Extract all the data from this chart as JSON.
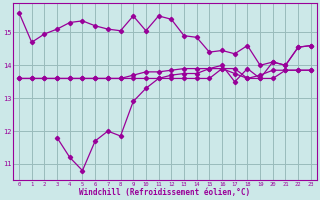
{
  "xlabel": "Windchill (Refroidissement éolien,°C)",
  "bg_color": "#cce8e8",
  "line_color": "#990099",
  "grid_color": "#99bbbb",
  "xlim": [
    -0.5,
    23.5
  ],
  "ylim": [
    10.5,
    15.9
  ],
  "yticks": [
    11,
    12,
    13,
    14,
    15
  ],
  "xticks": [
    0,
    1,
    2,
    3,
    4,
    5,
    6,
    7,
    8,
    9,
    10,
    11,
    12,
    13,
    14,
    15,
    16,
    17,
    18,
    19,
    20,
    21,
    22,
    23
  ],
  "series1_x": [
    0,
    1,
    2,
    3,
    4,
    5,
    6,
    7,
    8,
    9,
    10,
    11,
    12,
    13,
    14,
    15,
    16,
    17,
    18,
    19,
    20,
    21,
    22,
    23
  ],
  "series1_y": [
    15.6,
    14.7,
    14.95,
    15.1,
    15.3,
    15.35,
    15.2,
    15.1,
    15.05,
    15.5,
    15.05,
    15.5,
    15.4,
    14.9,
    14.85,
    14.4,
    14.45,
    14.35,
    14.6,
    14.0,
    14.1,
    14.0,
    14.55,
    14.6
  ],
  "series2_x": [
    0,
    1,
    2,
    3,
    4,
    5,
    6,
    7,
    8,
    9,
    10,
    11,
    12,
    13,
    14,
    15,
    16,
    17,
    18,
    19,
    20,
    21,
    22,
    23
  ],
  "series2_y": [
    13.6,
    13.6,
    13.6,
    13.6,
    13.6,
    13.6,
    13.6,
    13.6,
    13.6,
    13.6,
    13.6,
    13.6,
    13.6,
    13.6,
    13.6,
    13.6,
    13.9,
    13.9,
    13.6,
    13.6,
    13.6,
    13.85,
    13.85,
    13.85
  ],
  "series3_x": [
    0,
    1,
    2,
    3,
    4,
    5,
    6,
    7,
    8,
    9,
    10,
    11,
    12,
    13,
    14,
    15,
    16,
    17,
    18,
    19,
    20,
    21,
    22,
    23
  ],
  "series3_y": [
    13.6,
    13.6,
    13.6,
    13.6,
    13.6,
    13.6,
    13.6,
    13.6,
    13.6,
    13.7,
    13.8,
    13.8,
    13.85,
    13.9,
    13.9,
    13.9,
    13.9,
    13.75,
    13.6,
    13.7,
    13.85,
    13.85,
    13.85,
    13.85
  ],
  "series4_x": [
    3,
    4,
    5,
    6,
    7,
    8,
    9,
    10,
    11,
    12,
    13,
    14,
    15,
    16,
    17,
    18,
    19,
    20,
    21,
    22,
    23
  ],
  "series4_y": [
    11.8,
    11.2,
    10.8,
    11.7,
    12.0,
    11.85,
    12.9,
    13.3,
    13.6,
    13.7,
    13.75,
    13.75,
    13.9,
    14.0,
    13.5,
    13.9,
    13.6,
    14.1,
    14.0,
    14.55,
    14.6
  ]
}
